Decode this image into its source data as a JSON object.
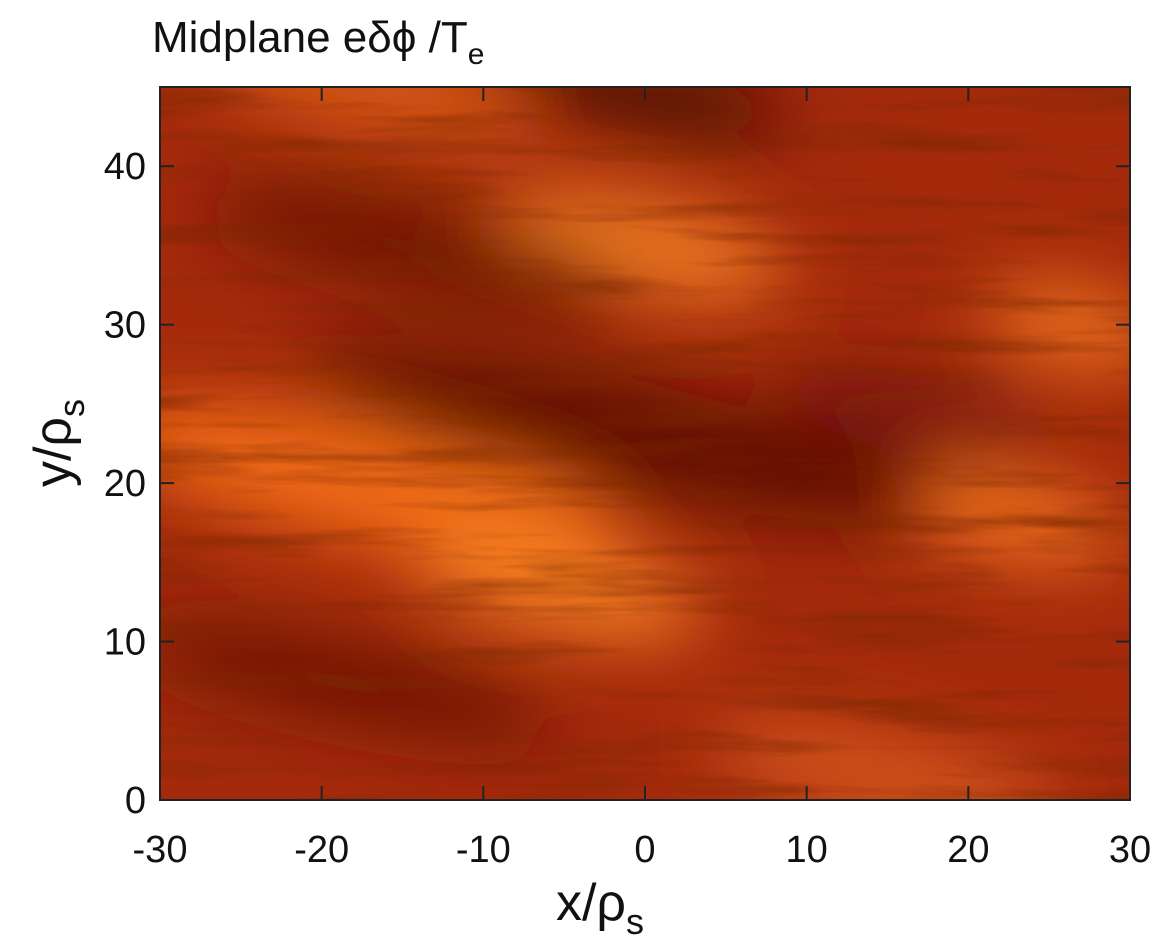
{
  "chart_data": {
    "type": "heatmap",
    "title": {
      "text": "Midplane eδϕ /T",
      "sub": "e"
    },
    "xlabel": {
      "text": "x/ρ",
      "sub": "s"
    },
    "ylabel": {
      "text": "y/ρ",
      "sub": "s"
    },
    "xlim": [
      -30,
      30
    ],
    "xticks": [
      -30,
      -20,
      -10,
      0,
      10,
      20,
      30
    ],
    "ylim": [
      0,
      45
    ],
    "yticks": [
      0,
      10,
      20,
      30,
      40
    ]
  }
}
